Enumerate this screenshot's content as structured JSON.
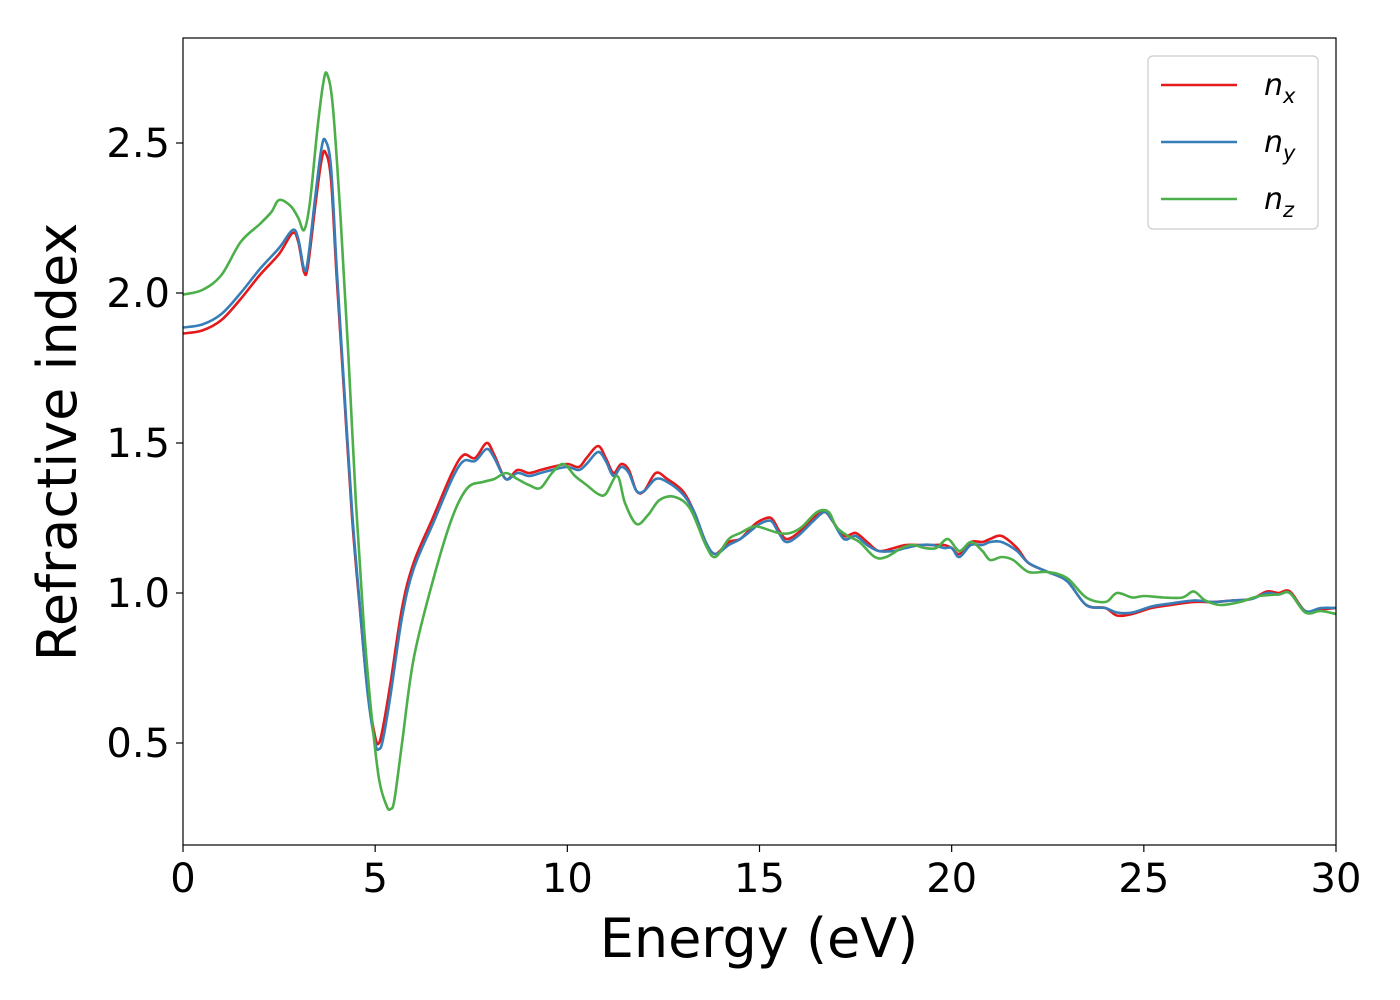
{
  "chart_data": {
    "type": "line",
    "xlabel": "Energy (eV)",
    "ylabel": "Refractive index",
    "xlim": [
      0,
      30
    ],
    "ylim": [
      0.16,
      2.85
    ],
    "xticks": [
      "0",
      "5",
      "10",
      "15",
      "20",
      "25",
      "30"
    ],
    "yticks": [
      "0.5",
      "1.0",
      "1.5",
      "2.0",
      "2.5"
    ],
    "grid": false,
    "legend_position": "top-right",
    "series": [
      {
        "name": "n_x",
        "label_main": "n",
        "label_sub": "x",
        "color": "#e41a1c",
        "points": [
          [
            0,
            1.865
          ],
          [
            0.5,
            1.875
          ],
          [
            1.0,
            1.91
          ],
          [
            1.5,
            1.98
          ],
          [
            2.0,
            2.06
          ],
          [
            2.5,
            2.13
          ],
          [
            2.85,
            2.2
          ],
          [
            3.0,
            2.17
          ],
          [
            3.15,
            2.07
          ],
          [
            3.25,
            2.09
          ],
          [
            3.45,
            2.3
          ],
          [
            3.6,
            2.44
          ],
          [
            3.7,
            2.47
          ],
          [
            3.85,
            2.38
          ],
          [
            4.0,
            2.05
          ],
          [
            4.2,
            1.65
          ],
          [
            4.4,
            1.25
          ],
          [
            4.6,
            0.95
          ],
          [
            4.8,
            0.68
          ],
          [
            5.0,
            0.52
          ],
          [
            5.1,
            0.5
          ],
          [
            5.2,
            0.55
          ],
          [
            5.4,
            0.7
          ],
          [
            5.7,
            0.95
          ],
          [
            6.0,
            1.1
          ],
          [
            6.5,
            1.25
          ],
          [
            7.0,
            1.4
          ],
          [
            7.3,
            1.46
          ],
          [
            7.6,
            1.45
          ],
          [
            7.9,
            1.5
          ],
          [
            8.1,
            1.46
          ],
          [
            8.4,
            1.38
          ],
          [
            8.7,
            1.41
          ],
          [
            9.0,
            1.4
          ],
          [
            9.3,
            1.41
          ],
          [
            9.6,
            1.42
          ],
          [
            10.0,
            1.43
          ],
          [
            10.3,
            1.42
          ],
          [
            10.5,
            1.45
          ],
          [
            10.8,
            1.49
          ],
          [
            11.0,
            1.45
          ],
          [
            11.2,
            1.4
          ],
          [
            11.4,
            1.43
          ],
          [
            11.6,
            1.41
          ],
          [
            11.8,
            1.34
          ],
          [
            12.0,
            1.34
          ],
          [
            12.3,
            1.4
          ],
          [
            12.6,
            1.38
          ],
          [
            13.0,
            1.34
          ],
          [
            13.3,
            1.27
          ],
          [
            13.6,
            1.17
          ],
          [
            13.85,
            1.13
          ],
          [
            14.2,
            1.17
          ],
          [
            14.5,
            1.18
          ],
          [
            14.8,
            1.22
          ],
          [
            15.0,
            1.24
          ],
          [
            15.3,
            1.25
          ],
          [
            15.5,
            1.21
          ],
          [
            15.7,
            1.18
          ],
          [
            16.0,
            1.2
          ],
          [
            16.4,
            1.25
          ],
          [
            16.7,
            1.27
          ],
          [
            16.9,
            1.24
          ],
          [
            17.2,
            1.19
          ],
          [
            17.5,
            1.2
          ],
          [
            17.8,
            1.17
          ],
          [
            18.1,
            1.14
          ],
          [
            18.5,
            1.15
          ],
          [
            18.8,
            1.16
          ],
          [
            19.2,
            1.16
          ],
          [
            19.5,
            1.16
          ],
          [
            19.8,
            1.16
          ],
          [
            20.0,
            1.15
          ],
          [
            20.2,
            1.13
          ],
          [
            20.5,
            1.17
          ],
          [
            20.8,
            1.17
          ],
          [
            21.0,
            1.18
          ],
          [
            21.3,
            1.19
          ],
          [
            21.7,
            1.15
          ],
          [
            22.0,
            1.1
          ],
          [
            22.5,
            1.07
          ],
          [
            23.0,
            1.04
          ],
          [
            23.5,
            0.96
          ],
          [
            24.0,
            0.95
          ],
          [
            24.3,
            0.925
          ],
          [
            24.7,
            0.93
          ],
          [
            25.2,
            0.95
          ],
          [
            25.7,
            0.96
          ],
          [
            26.3,
            0.97
          ],
          [
            26.8,
            0.97
          ],
          [
            27.3,
            0.975
          ],
          [
            27.8,
            0.98
          ],
          [
            28.2,
            1.005
          ],
          [
            28.5,
            1.0
          ],
          [
            28.8,
            1.005
          ],
          [
            29.2,
            0.94
          ],
          [
            29.6,
            0.945
          ],
          [
            30.0,
            0.95
          ]
        ]
      },
      {
        "name": "n_y",
        "label_main": "n",
        "label_sub": "y",
        "color": "#377eb8",
        "points": [
          [
            0,
            1.885
          ],
          [
            0.5,
            1.895
          ],
          [
            1.0,
            1.93
          ],
          [
            1.5,
            2.0
          ],
          [
            2.0,
            2.08
          ],
          [
            2.5,
            2.15
          ],
          [
            2.85,
            2.21
          ],
          [
            3.0,
            2.18
          ],
          [
            3.15,
            2.08
          ],
          [
            3.25,
            2.11
          ],
          [
            3.45,
            2.33
          ],
          [
            3.6,
            2.48
          ],
          [
            3.7,
            2.51
          ],
          [
            3.85,
            2.42
          ],
          [
            4.0,
            2.08
          ],
          [
            4.2,
            1.67
          ],
          [
            4.4,
            1.27
          ],
          [
            4.6,
            0.96
          ],
          [
            4.8,
            0.67
          ],
          [
            5.0,
            0.5
          ],
          [
            5.1,
            0.48
          ],
          [
            5.2,
            0.51
          ],
          [
            5.4,
            0.66
          ],
          [
            5.7,
            0.92
          ],
          [
            6.0,
            1.08
          ],
          [
            6.5,
            1.23
          ],
          [
            7.0,
            1.38
          ],
          [
            7.3,
            1.44
          ],
          [
            7.6,
            1.44
          ],
          [
            7.9,
            1.48
          ],
          [
            8.1,
            1.45
          ],
          [
            8.4,
            1.38
          ],
          [
            8.7,
            1.4
          ],
          [
            9.0,
            1.39
          ],
          [
            9.3,
            1.4
          ],
          [
            9.6,
            1.41
          ],
          [
            10.0,
            1.42
          ],
          [
            10.3,
            1.41
          ],
          [
            10.5,
            1.43
          ],
          [
            10.8,
            1.47
          ],
          [
            11.0,
            1.44
          ],
          [
            11.2,
            1.39
          ],
          [
            11.4,
            1.42
          ],
          [
            11.6,
            1.4
          ],
          [
            11.8,
            1.34
          ],
          [
            12.0,
            1.34
          ],
          [
            12.3,
            1.38
          ],
          [
            12.6,
            1.37
          ],
          [
            13.0,
            1.33
          ],
          [
            13.3,
            1.27
          ],
          [
            13.6,
            1.17
          ],
          [
            13.85,
            1.13
          ],
          [
            14.2,
            1.16
          ],
          [
            14.5,
            1.18
          ],
          [
            14.8,
            1.21
          ],
          [
            15.0,
            1.23
          ],
          [
            15.3,
            1.24
          ],
          [
            15.5,
            1.2
          ],
          [
            15.7,
            1.17
          ],
          [
            16.0,
            1.19
          ],
          [
            16.4,
            1.24
          ],
          [
            16.7,
            1.27
          ],
          [
            16.9,
            1.24
          ],
          [
            17.2,
            1.18
          ],
          [
            17.5,
            1.19
          ],
          [
            17.8,
            1.16
          ],
          [
            18.1,
            1.14
          ],
          [
            18.5,
            1.14
          ],
          [
            18.8,
            1.15
          ],
          [
            19.2,
            1.16
          ],
          [
            19.5,
            1.16
          ],
          [
            19.8,
            1.15
          ],
          [
            20.0,
            1.15
          ],
          [
            20.2,
            1.12
          ],
          [
            20.5,
            1.16
          ],
          [
            20.8,
            1.16
          ],
          [
            21.0,
            1.17
          ],
          [
            21.3,
            1.17
          ],
          [
            21.7,
            1.14
          ],
          [
            22.0,
            1.1
          ],
          [
            22.5,
            1.07
          ],
          [
            23.0,
            1.04
          ],
          [
            23.5,
            0.96
          ],
          [
            24.0,
            0.95
          ],
          [
            24.3,
            0.935
          ],
          [
            24.7,
            0.935
          ],
          [
            25.2,
            0.955
          ],
          [
            25.7,
            0.965
          ],
          [
            26.3,
            0.975
          ],
          [
            26.8,
            0.97
          ],
          [
            27.3,
            0.975
          ],
          [
            27.8,
            0.98
          ],
          [
            28.2,
            1.0
          ],
          [
            28.5,
            0.995
          ],
          [
            28.8,
            1.0
          ],
          [
            29.2,
            0.94
          ],
          [
            29.6,
            0.95
          ],
          [
            30.0,
            0.95
          ]
        ]
      },
      {
        "name": "n_z",
        "label_main": "n",
        "label_sub": "z",
        "color": "#4daf4a",
        "points": [
          [
            0,
            1.995
          ],
          [
            0.5,
            2.01
          ],
          [
            1.0,
            2.06
          ],
          [
            1.5,
            2.17
          ],
          [
            2.0,
            2.23
          ],
          [
            2.3,
            2.27
          ],
          [
            2.5,
            2.31
          ],
          [
            2.8,
            2.29
          ],
          [
            3.0,
            2.25
          ],
          [
            3.15,
            2.21
          ],
          [
            3.3,
            2.3
          ],
          [
            3.5,
            2.55
          ],
          [
            3.65,
            2.7
          ],
          [
            3.75,
            2.73
          ],
          [
            3.9,
            2.62
          ],
          [
            4.1,
            2.25
          ],
          [
            4.3,
            1.8
          ],
          [
            4.5,
            1.3
          ],
          [
            4.7,
            0.9
          ],
          [
            4.9,
            0.6
          ],
          [
            5.1,
            0.38
          ],
          [
            5.3,
            0.29
          ],
          [
            5.4,
            0.28
          ],
          [
            5.5,
            0.31
          ],
          [
            5.7,
            0.5
          ],
          [
            6.0,
            0.78
          ],
          [
            6.5,
            1.04
          ],
          [
            7.0,
            1.25
          ],
          [
            7.4,
            1.35
          ],
          [
            7.8,
            1.37
          ],
          [
            8.1,
            1.38
          ],
          [
            8.4,
            1.4
          ],
          [
            8.7,
            1.38
          ],
          [
            9.0,
            1.36
          ],
          [
            9.3,
            1.35
          ],
          [
            9.6,
            1.4
          ],
          [
            9.9,
            1.43
          ],
          [
            10.2,
            1.39
          ],
          [
            10.5,
            1.36
          ],
          [
            10.8,
            1.33
          ],
          [
            11.0,
            1.33
          ],
          [
            11.3,
            1.39
          ],
          [
            11.5,
            1.3
          ],
          [
            11.8,
            1.23
          ],
          [
            12.1,
            1.26
          ],
          [
            12.4,
            1.31
          ],
          [
            12.8,
            1.32
          ],
          [
            13.2,
            1.28
          ],
          [
            13.6,
            1.16
          ],
          [
            13.85,
            1.12
          ],
          [
            14.2,
            1.18
          ],
          [
            14.5,
            1.2
          ],
          [
            14.8,
            1.22
          ],
          [
            15.0,
            1.22
          ],
          [
            15.5,
            1.2
          ],
          [
            15.8,
            1.2
          ],
          [
            16.1,
            1.22
          ],
          [
            16.5,
            1.27
          ],
          [
            16.8,
            1.27
          ],
          [
            17.0,
            1.22
          ],
          [
            17.3,
            1.19
          ],
          [
            17.6,
            1.17
          ],
          [
            18.0,
            1.12
          ],
          [
            18.3,
            1.12
          ],
          [
            18.7,
            1.15
          ],
          [
            19.0,
            1.16
          ],
          [
            19.3,
            1.15
          ],
          [
            19.6,
            1.15
          ],
          [
            19.9,
            1.18
          ],
          [
            20.2,
            1.14
          ],
          [
            20.5,
            1.17
          ],
          [
            20.8,
            1.14
          ],
          [
            21.0,
            1.11
          ],
          [
            21.3,
            1.12
          ],
          [
            21.6,
            1.11
          ],
          [
            22.0,
            1.07
          ],
          [
            22.5,
            1.07
          ],
          [
            23.0,
            1.05
          ],
          [
            23.5,
            0.985
          ],
          [
            24.0,
            0.97
          ],
          [
            24.3,
            1.0
          ],
          [
            24.7,
            0.985
          ],
          [
            25.0,
            0.99
          ],
          [
            25.5,
            0.985
          ],
          [
            26.0,
            0.985
          ],
          [
            26.3,
            1.005
          ],
          [
            26.6,
            0.975
          ],
          [
            27.0,
            0.96
          ],
          [
            27.5,
            0.97
          ],
          [
            28.0,
            0.99
          ],
          [
            28.5,
            0.995
          ],
          [
            28.8,
            1.0
          ],
          [
            29.2,
            0.935
          ],
          [
            29.6,
            0.94
          ],
          [
            30.0,
            0.93
          ]
        ]
      }
    ]
  }
}
